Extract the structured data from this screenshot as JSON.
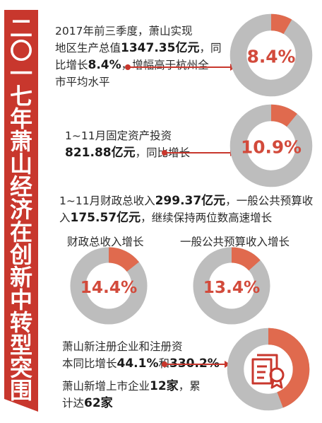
{
  "title_chars": [
    "二",
    "〇",
    "一",
    "七",
    "年",
    "萧",
    "山",
    "经",
    "济",
    "在",
    "创",
    "新",
    "中",
    "转",
    "型",
    "突",
    "围"
  ],
  "block1": {
    "t1": "2017年前三季度，萧山实现",
    "t2": "地区生产总值",
    "v1": "1347.35亿元",
    "t3": "，同",
    "t4": "比增长",
    "v2": "8.4%",
    "t5": "，增幅高于杭州全",
    "t6": "市平均水平"
  },
  "block2": {
    "t1": "1~11月固定资产投资",
    "v1": "821.88亿元",
    "t2": "，同比增长"
  },
  "block3": {
    "t1": "1~11月财政总收入",
    "v1": "299.37亿元",
    "t2": "，一般公共预算收",
    "t3": "入",
    "v2": "175.57亿元",
    "t4": "，继续保持两位数高速增长",
    "label_a": "财政总收入增长",
    "label_b": "一般公共预算收入增长"
  },
  "block4": {
    "t1": "萧山新注册企业和注册资",
    "t2": "本同比增长",
    "v1": "44.1%",
    "t3": "和",
    "v2": "330.2%",
    "t4": "萧山新增上市企业",
    "v3": "12家",
    "t5": "，累",
    "t6": "计达",
    "v4": "62家"
  },
  "colors": {
    "accent": "#c8372d",
    "ring_fill": "#e06a4e",
    "ring_track": "#bdbdbd",
    "pct_text": "#d24a3b"
  },
  "icon": "certificate-badge-icon",
  "chart_data": [
    {
      "type": "pie",
      "name": "gdp-growth",
      "value": 8.4,
      "label": "8.4%"
    },
    {
      "type": "pie",
      "name": "fixed-investment-growth",
      "value": 10.9,
      "label": "10.9%"
    },
    {
      "type": "pie",
      "name": "fiscal-revenue-growth",
      "value": 14.4,
      "label": "14.4%"
    },
    {
      "type": "pie",
      "name": "public-budget-revenue-growth",
      "value": 13.4,
      "label": "13.4%"
    },
    {
      "type": "pie",
      "name": "new-enterprise-growth",
      "value": 44.1,
      "label": ""
    }
  ]
}
